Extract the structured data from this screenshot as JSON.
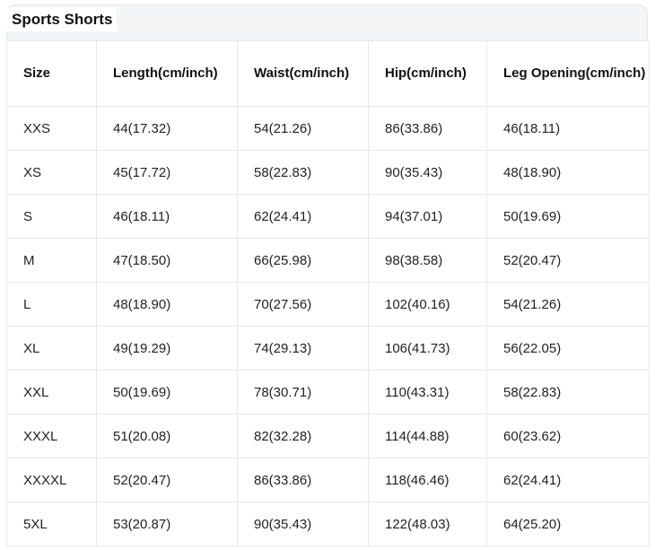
{
  "title": "Sports Shorts",
  "columns": [
    "Size",
    "Length(cm/inch)",
    "Waist(cm/inch)",
    "Hip(cm/inch)",
    "Leg Opening(cm/inch)"
  ],
  "rows": [
    [
      "XXS",
      "44(17.32)",
      "54(21.26)",
      "86(33.86)",
      "46(18.11)"
    ],
    [
      "XS",
      "45(17.72)",
      "58(22.83)",
      "90(35.43)",
      "48(18.90)"
    ],
    [
      "S",
      "46(18.11)",
      "62(24.41)",
      "94(37.01)",
      "50(19.69)"
    ],
    [
      "M",
      "47(18.50)",
      "66(25.98)",
      "98(38.58)",
      "52(20.47)"
    ],
    [
      "L",
      "48(18.90)",
      "70(27.56)",
      "102(40.16)",
      "54(21.26)"
    ],
    [
      "XL",
      "49(19.29)",
      "74(29.13)",
      "106(41.73)",
      "56(22.05)"
    ],
    [
      "XXL",
      "50(19.69)",
      "78(30.71)",
      "110(43.31)",
      "58(22.83)"
    ],
    [
      "XXXL",
      "51(20.08)",
      "82(32.28)",
      "114(44.88)",
      "60(23.62)"
    ],
    [
      "XXXXL",
      "52(20.47)",
      "86(33.86)",
      "118(46.46)",
      "62(24.41)"
    ],
    [
      "5XL",
      "53(20.87)",
      "90(35.43)",
      "122(48.03)",
      "64(25.20)"
    ]
  ]
}
